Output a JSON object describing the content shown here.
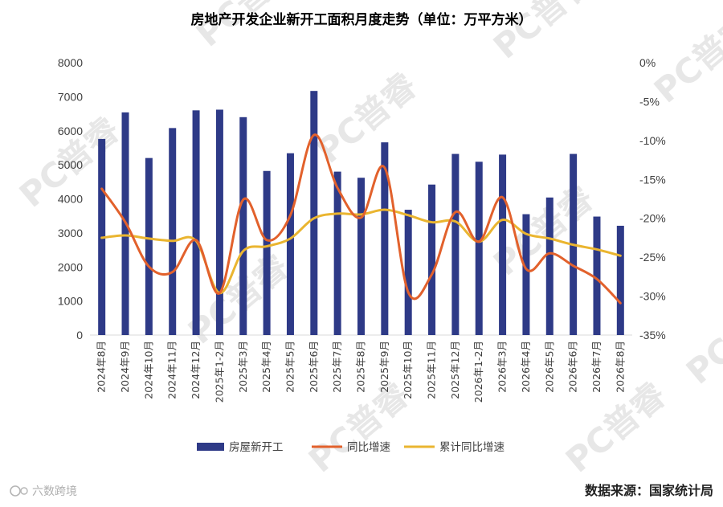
{
  "source_note": "数据来源：国家统计局",
  "brand_label": "六数跨境",
  "watermark": "PC普睿",
  "colors": {
    "bar": "#2e3a87",
    "yoy": "#e2612c",
    "cum": "#eab530",
    "axis": "#d9d9d9"
  },
  "chart_data": {
    "type": "bar",
    "title": "房地产开发企业新开工面积月度走势（单位：万平方米）",
    "categories": [
      "2024年8月",
      "2024年9月",
      "2024年10月",
      "2024年11月",
      "2024年12月",
      "2025年1-2月",
      "2025年3月",
      "2025年4月",
      "2025年5月",
      "2025年6月",
      "2025年7月",
      "2025年8月",
      "2025年9月",
      "2025年10月",
      "2025年11月",
      "2025年12月",
      "2026年1-2月",
      "2026年3月",
      "2026年4月",
      "2026年5月",
      "2026年6月",
      "2026年7月",
      "2026年8月"
    ],
    "series": [
      {
        "name": "房屋新开工",
        "type": "bar",
        "axis": "left",
        "values": [
          5760,
          6540,
          5200,
          6080,
          6600,
          6620,
          6400,
          4820,
          5340,
          7170,
          4800,
          4620,
          5660,
          3680,
          4420,
          5320,
          5090,
          5300,
          3550,
          4040,
          5320,
          3480,
          3210
        ]
      },
      {
        "name": "同比增速",
        "type": "line",
        "axis": "right",
        "values": [
          -16.2,
          -20.5,
          -26.2,
          -26.9,
          -22.8,
          -29.6,
          -17.6,
          -22.8,
          -19.6,
          -9.3,
          -16.1,
          -19.9,
          -13.5,
          -29.5,
          -27.2,
          -19.2,
          -23.0,
          -17.3,
          -26.5,
          -24.5,
          -26.1,
          -27.8,
          -30.9
        ]
      },
      {
        "name": "累计同比增速",
        "type": "line",
        "axis": "right",
        "values": [
          -22.5,
          -22.2,
          -22.6,
          -22.9,
          -22.9,
          -29.6,
          -24.2,
          -23.6,
          -22.6,
          -20.0,
          -19.4,
          -19.5,
          -18.9,
          -19.6,
          -20.5,
          -20.4,
          -23.0,
          -20.2,
          -22.0,
          -22.6,
          -23.4,
          -24.0,
          -24.8
        ]
      }
    ],
    "y_left": {
      "min": 0,
      "max": 8000,
      "ticks": [
        "0",
        "1000",
        "2000",
        "3000",
        "4000",
        "5000",
        "6000",
        "7000",
        "8000"
      ]
    },
    "y_right": {
      "min": -35,
      "max": 0,
      "ticks": [
        "-35%",
        "-30%",
        "-25%",
        "-20%",
        "-15%",
        "-10%",
        "-5%",
        "0%"
      ]
    },
    "legend_position": "bottom",
    "grid": false
  }
}
